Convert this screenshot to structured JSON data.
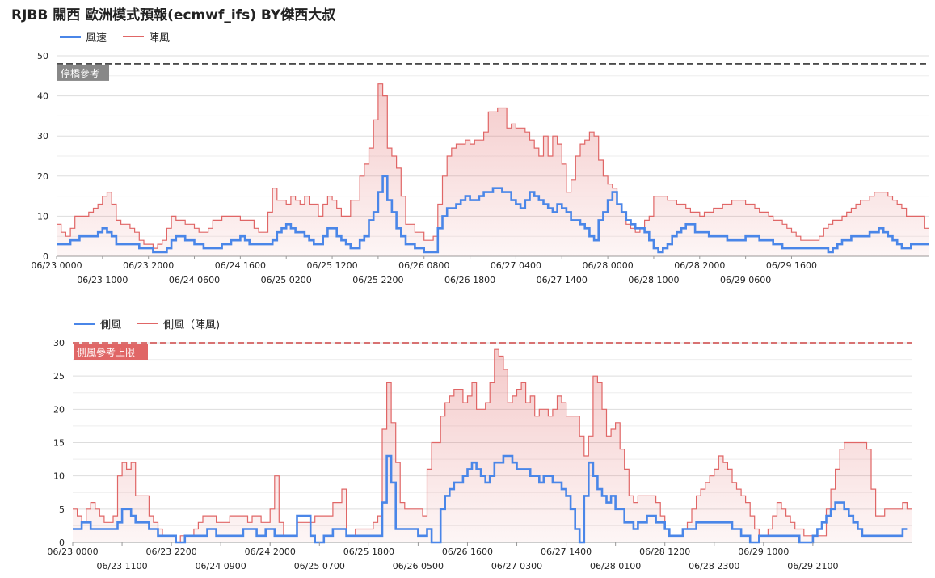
{
  "title": "RJBB 關西 歐洲模式預報(ecmwf_ifs)  BY傑西大叔",
  "colors": {
    "wind": "#4a86e8",
    "gust": "#e06666",
    "gust_fill": "#fde2e0",
    "ref1": "#333333",
    "ref2": "#cc4444",
    "tag1": "#888888",
    "tag2": "#e06666"
  },
  "chart_data": [
    {
      "type": "line",
      "legend": [
        "風速",
        "陣風"
      ],
      "ylim": [
        0,
        50
      ],
      "yticks": [
        0,
        10,
        20,
        30,
        40,
        50
      ],
      "grid": true,
      "reference": {
        "label": "停橋參考",
        "value": 48
      },
      "xticks_upper": [
        "06/23 0000",
        "06/23 2000",
        "06/24 1600",
        "06/25 1200",
        "06/26 0800",
        "06/27 0400",
        "06/28 0000",
        "06/28 2000",
        "06/29 1600"
      ],
      "xticks_lower": [
        "06/23 1000",
        "06/24 0600",
        "06/25 0200",
        "06/25 2200",
        "06/26 1800",
        "06/27 1400",
        "06/28 1000",
        "06/29 0600"
      ],
      "tick_step_hours": 10,
      "series": [
        {
          "name": "風速",
          "values": [
            3,
            3,
            3,
            4,
            4,
            5,
            5,
            5,
            5,
            6,
            7,
            6,
            5,
            3,
            3,
            3,
            3,
            3,
            2,
            2,
            2,
            1,
            1,
            1,
            2,
            4,
            5,
            5,
            4,
            4,
            3,
            3,
            2,
            2,
            2,
            2,
            3,
            3,
            4,
            4,
            5,
            4,
            3,
            3,
            3,
            3,
            3,
            4,
            6,
            7,
            8,
            7,
            6,
            6,
            5,
            4,
            3,
            3,
            5,
            7,
            7,
            5,
            4,
            3,
            2,
            2,
            4,
            5,
            9,
            11,
            16,
            20,
            14,
            11,
            7,
            5,
            3,
            3,
            2,
            2,
            1,
            1,
            1,
            7,
            10,
            12,
            12,
            13,
            14,
            15,
            14,
            14,
            15,
            16,
            16,
            17,
            17,
            16,
            16,
            14,
            13,
            12,
            14,
            16,
            15,
            14,
            13,
            12,
            11,
            13,
            12,
            11,
            9,
            9,
            8,
            7,
            5,
            4,
            9,
            11,
            14,
            16,
            13,
            11,
            9,
            8,
            7,
            7,
            6,
            4,
            2,
            1,
            2,
            3,
            5,
            6,
            7,
            8,
            8,
            6,
            6,
            6,
            5,
            5,
            5,
            5,
            4,
            4,
            4,
            4,
            5,
            5,
            5,
            4,
            4,
            4,
            3,
            3,
            2,
            2,
            2,
            2,
            2,
            2,
            2,
            2,
            2,
            2,
            1,
            2,
            3,
            4,
            4,
            5,
            5,
            5,
            5,
            6,
            6,
            7,
            6,
            5,
            4,
            3,
            2,
            2,
            3,
            3,
            3,
            3
          ]
        },
        {
          "name": "陣風",
          "values": [
            8,
            6,
            5,
            7,
            10,
            10,
            10,
            11,
            12,
            13,
            15,
            16,
            13,
            9,
            8,
            8,
            7,
            6,
            4,
            3,
            3,
            2,
            3,
            4,
            7,
            10,
            9,
            9,
            8,
            8,
            7,
            6,
            6,
            7,
            9,
            9,
            10,
            10,
            10,
            10,
            9,
            9,
            9,
            7,
            6,
            6,
            11,
            17,
            14,
            14,
            13,
            15,
            14,
            13,
            15,
            13,
            13,
            10,
            13,
            15,
            14,
            12,
            10,
            10,
            14,
            14,
            20,
            23,
            27,
            34,
            43,
            40,
            27,
            25,
            22,
            15,
            8,
            8,
            6,
            6,
            4,
            4,
            5,
            13,
            20,
            25,
            27,
            28,
            28,
            29,
            28,
            29,
            29,
            31,
            36,
            36,
            37,
            37,
            32,
            33,
            32,
            32,
            31,
            29,
            27,
            25,
            30,
            25,
            30,
            28,
            23,
            16,
            19,
            25,
            28,
            29,
            31,
            30,
            24,
            20,
            18,
            17,
            13,
            11,
            8,
            7,
            6,
            7,
            9,
            10,
            15,
            15,
            15,
            14,
            14,
            13,
            13,
            12,
            11,
            11,
            10,
            11,
            11,
            12,
            12,
            13,
            13,
            14,
            14,
            14,
            13,
            13,
            12,
            11,
            11,
            10,
            9,
            9,
            8,
            7,
            6,
            5,
            4,
            4,
            4,
            4,
            5,
            7,
            8,
            9,
            9,
            10,
            11,
            12,
            13,
            14,
            14,
            15,
            16,
            16,
            16,
            15,
            14,
            13,
            12,
            10,
            10,
            10,
            10,
            7
          ]
        }
      ]
    },
    {
      "type": "line",
      "legend": [
        "側風",
        "側風（陣風)"
      ],
      "ylim": [
        0,
        30
      ],
      "yticks": [
        0,
        5,
        10,
        15,
        20,
        25,
        30
      ],
      "grid": true,
      "reference": {
        "label": "側風參考上限",
        "value": 30
      },
      "xticks_upper": [
        "06/23 0000",
        "06/23 2200",
        "06/24 2000",
        "06/25 1800",
        "06/26 1600",
        "06/27 1400",
        "06/28 1200",
        "06/29 1000"
      ],
      "xticks_lower": [
        "06/23 1100",
        "06/24 0900",
        "06/25 0700",
        "06/26 0500",
        "06/27 0300",
        "06/28 0100",
        "06/28 2300",
        "06/29 2100"
      ],
      "tick_step_hours": 11,
      "series": [
        {
          "name": "側風",
          "values": [
            2,
            2,
            3,
            3,
            2,
            2,
            2,
            2,
            2,
            2,
            3,
            5,
            5,
            4,
            3,
            3,
            3,
            2,
            2,
            1,
            1,
            1,
            1,
            0,
            0,
            1,
            1,
            1,
            1,
            1,
            2,
            2,
            1,
            1,
            1,
            1,
            1,
            1,
            2,
            2,
            2,
            1,
            1,
            2,
            2,
            1,
            1,
            1,
            1,
            1,
            4,
            4,
            4,
            1,
            0,
            0,
            1,
            1,
            2,
            2,
            2,
            1,
            1,
            1,
            1,
            1,
            1,
            1,
            1,
            6,
            13,
            9,
            2,
            2,
            2,
            2,
            2,
            1,
            1,
            2,
            0,
            0,
            5,
            7,
            8,
            9,
            9,
            10,
            11,
            12,
            11,
            10,
            9,
            10,
            12,
            12,
            13,
            13,
            12,
            11,
            11,
            11,
            10,
            10,
            9,
            10,
            10,
            9,
            9,
            8,
            7,
            5,
            2,
            0,
            7,
            12,
            10,
            8,
            7,
            6,
            7,
            5,
            5,
            3,
            3,
            2,
            3,
            3,
            4,
            4,
            3,
            3,
            2,
            1,
            1,
            1,
            2,
            2,
            2,
            3,
            3,
            3,
            3,
            3,
            3,
            3,
            3,
            2,
            2,
            1,
            1,
            0,
            0,
            1,
            1,
            1,
            1,
            1,
            1,
            1,
            1,
            1,
            0,
            0,
            0,
            1,
            2,
            3,
            4,
            5,
            6,
            6,
            5,
            4,
            3,
            2,
            1,
            1,
            1,
            1,
            1,
            1,
            1,
            1,
            1,
            2
          ]
        },
        {
          "name": "側風（陣風)",
          "values": [
            5,
            4,
            3,
            5,
            6,
            5,
            4,
            3,
            3,
            4,
            10,
            12,
            11,
            12,
            7,
            7,
            7,
            4,
            3,
            2,
            1,
            1,
            1,
            0,
            1,
            1,
            1,
            2,
            3,
            4,
            4,
            4,
            3,
            3,
            3,
            4,
            4,
            4,
            4,
            3,
            4,
            4,
            3,
            3,
            5,
            10,
            3,
            1,
            1,
            1,
            3,
            3,
            3,
            3,
            4,
            4,
            4,
            4,
            6,
            6,
            8,
            1,
            1,
            2,
            2,
            2,
            2,
            3,
            4,
            17,
            24,
            18,
            12,
            6,
            5,
            5,
            5,
            5,
            4,
            11,
            15,
            15,
            19,
            21,
            22,
            23,
            23,
            21,
            22,
            24,
            20,
            20,
            21,
            24,
            29,
            28,
            26,
            21,
            22,
            23,
            24,
            21,
            22,
            19,
            20,
            20,
            19,
            20,
            22,
            21,
            19,
            19,
            19,
            16,
            13,
            16,
            25,
            24,
            20,
            16,
            17,
            18,
            14,
            11,
            7,
            6,
            7,
            7,
            7,
            7,
            6,
            4,
            2,
            1,
            1,
            1,
            2,
            3,
            5,
            7,
            8,
            9,
            10,
            11,
            13,
            12,
            11,
            9,
            8,
            7,
            6,
            4,
            2,
            1,
            1,
            2,
            4,
            6,
            5,
            4,
            3,
            2,
            2,
            1,
            1,
            1,
            1,
            1,
            5,
            8,
            11,
            14,
            15,
            15,
            15,
            15,
            15,
            14,
            8,
            4,
            4,
            5,
            5,
            5,
            5,
            6,
            5
          ]
        }
      ]
    }
  ]
}
